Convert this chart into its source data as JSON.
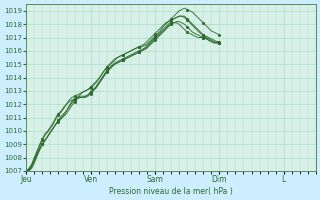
{
  "title": "",
  "xlabel": "Pression niveau de la mer( hPa )",
  "ylabel": "",
  "bg_color": "#cceeff",
  "plot_bg_color": "#d8f0e8",
  "grid_color": "#aaddcc",
  "line_color": "#2d6b2d",
  "ylim": [
    1007,
    1019.5
  ],
  "yticks": [
    1007,
    1008,
    1009,
    1010,
    1011,
    1012,
    1013,
    1014,
    1015,
    1016,
    1017,
    1018,
    1019
  ],
  "day_labels": [
    "Jeu",
    "Ven",
    "Sam",
    "Dim",
    "L"
  ],
  "day_positions": [
    0,
    24,
    48,
    72,
    96
  ],
  "total_hours": 108,
  "lines": [
    [
      1007,
      1007.2,
      1007.5,
      1008.0,
      1008.5,
      1009.0,
      1009.4,
      1009.8,
      1010.0,
      1010.3,
      1010.6,
      1011.0,
      1011.3,
      1011.5,
      1011.8,
      1012.0,
      1012.2,
      1012.3,
      1012.4,
      1012.5,
      1012.7,
      1012.9,
      1013.0,
      1013.1,
      1013.3,
      1013.5,
      1013.7,
      1013.9,
      1014.2,
      1014.5,
      1014.7,
      1014.9,
      1015.1,
      1015.3,
      1015.5,
      1015.6,
      1015.7,
      1015.8,
      1015.9,
      1016.0,
      1016.1,
      1016.2,
      1016.3,
      1016.4,
      1016.5,
      1016.7,
      1016.9,
      1017.1,
      1017.3,
      1017.5,
      1017.7,
      1017.9,
      1018.1,
      1018.2,
      1018.4,
      1018.6,
      1018.8,
      1019.0,
      1019.1,
      1019.2,
      1019.1,
      1019.0,
      1018.9,
      1018.7,
      1018.5,
      1018.3,
      1018.1,
      1017.9,
      1017.7,
      1017.5,
      1017.4,
      1017.3,
      1017.2
    ],
    [
      1007,
      1007.1,
      1007.4,
      1007.9,
      1008.4,
      1008.9,
      1009.3,
      1009.7,
      1009.9,
      1010.2,
      1010.5,
      1010.9,
      1011.2,
      1011.4,
      1011.7,
      1012.0,
      1012.3,
      1012.5,
      1012.6,
      1012.7,
      1012.8,
      1012.9,
      1013.0,
      1013.1,
      1013.2,
      1013.4,
      1013.6,
      1013.9,
      1014.2,
      1014.5,
      1014.8,
      1015.0,
      1015.2,
      1015.4,
      1015.5,
      1015.6,
      1015.7,
      1015.8,
      1015.9,
      1016.0,
      1016.1,
      1016.2,
      1016.3,
      1016.3,
      1016.4,
      1016.5,
      1016.7,
      1016.9,
      1017.1,
      1017.3,
      1017.5,
      1017.8,
      1018.0,
      1018.2,
      1018.3,
      1018.4,
      1018.5,
      1018.6,
      1018.6,
      1018.6,
      1018.4,
      1018.2,
      1018.0,
      1017.8,
      1017.6,
      1017.4,
      1017.2,
      1017.0,
      1016.8,
      1016.7,
      1016.6,
      1016.6,
      1016.6
    ],
    [
      1007,
      1007.0,
      1007.3,
      1007.8,
      1008.3,
      1008.7,
      1009.0,
      1009.3,
      1009.6,
      1009.9,
      1010.2,
      1010.5,
      1010.8,
      1011.0,
      1011.2,
      1011.5,
      1011.9,
      1012.2,
      1012.4,
      1012.5,
      1012.5,
      1012.5,
      1012.6,
      1012.7,
      1012.9,
      1013.1,
      1013.3,
      1013.6,
      1013.9,
      1014.2,
      1014.5,
      1014.7,
      1014.9,
      1015.0,
      1015.1,
      1015.2,
      1015.3,
      1015.4,
      1015.5,
      1015.6,
      1015.7,
      1015.8,
      1015.9,
      1016.0,
      1016.1,
      1016.2,
      1016.4,
      1016.6,
      1016.8,
      1017.0,
      1017.2,
      1017.4,
      1017.6,
      1017.8,
      1018.0,
      1018.1,
      1018.2,
      1018.2,
      1018.1,
      1018.0,
      1017.8,
      1017.6,
      1017.4,
      1017.3,
      1017.2,
      1017.1,
      1017.0,
      1016.9,
      1016.8,
      1016.7,
      1016.6,
      1016.6,
      1016.6
    ],
    [
      1007,
      1007.0,
      1007.2,
      1007.6,
      1008.1,
      1008.6,
      1009.0,
      1009.3,
      1009.6,
      1009.9,
      1010.2,
      1010.5,
      1010.7,
      1010.9,
      1011.1,
      1011.3,
      1011.6,
      1011.9,
      1012.2,
      1012.4,
      1012.5,
      1012.5,
      1012.5,
      1012.6,
      1012.8,
      1013.0,
      1013.2,
      1013.5,
      1013.8,
      1014.1,
      1014.4,
      1014.6,
      1014.8,
      1015.0,
      1015.1,
      1015.2,
      1015.3,
      1015.4,
      1015.5,
      1015.6,
      1015.7,
      1015.8,
      1015.9,
      1016.0,
      1016.1,
      1016.3,
      1016.5,
      1016.7,
      1016.9,
      1017.1,
      1017.3,
      1017.5,
      1017.7,
      1017.9,
      1018.0,
      1018.1,
      1018.1,
      1018.0,
      1017.8,
      1017.6,
      1017.4,
      1017.3,
      1017.2,
      1017.1,
      1017.0,
      1017.0,
      1017.0,
      1017.0,
      1016.9,
      1016.8,
      1016.7,
      1016.6,
      1016.6
    ],
    [
      1007,
      1007.1,
      1007.4,
      1007.8,
      1008.2,
      1008.6,
      1009.0,
      1009.3,
      1009.6,
      1009.9,
      1010.2,
      1010.5,
      1010.8,
      1011.1,
      1011.3,
      1011.5,
      1011.8,
      1012.1,
      1012.3,
      1012.5,
      1012.6,
      1012.6,
      1012.6,
      1012.7,
      1012.9,
      1013.1,
      1013.3,
      1013.6,
      1013.9,
      1014.2,
      1014.5,
      1014.7,
      1014.9,
      1015.1,
      1015.2,
      1015.3,
      1015.4,
      1015.5,
      1015.6,
      1015.7,
      1015.8,
      1015.9,
      1016.0,
      1016.1,
      1016.2,
      1016.4,
      1016.6,
      1016.8,
      1017.0,
      1017.2,
      1017.4,
      1017.6,
      1017.8,
      1018.0,
      1018.2,
      1018.4,
      1018.5,
      1018.6,
      1018.6,
      1018.5,
      1018.3,
      1018.1,
      1017.9,
      1017.7,
      1017.5,
      1017.3,
      1017.2,
      1017.1,
      1017.0,
      1016.9,
      1016.8,
      1016.7,
      1016.7
    ]
  ]
}
